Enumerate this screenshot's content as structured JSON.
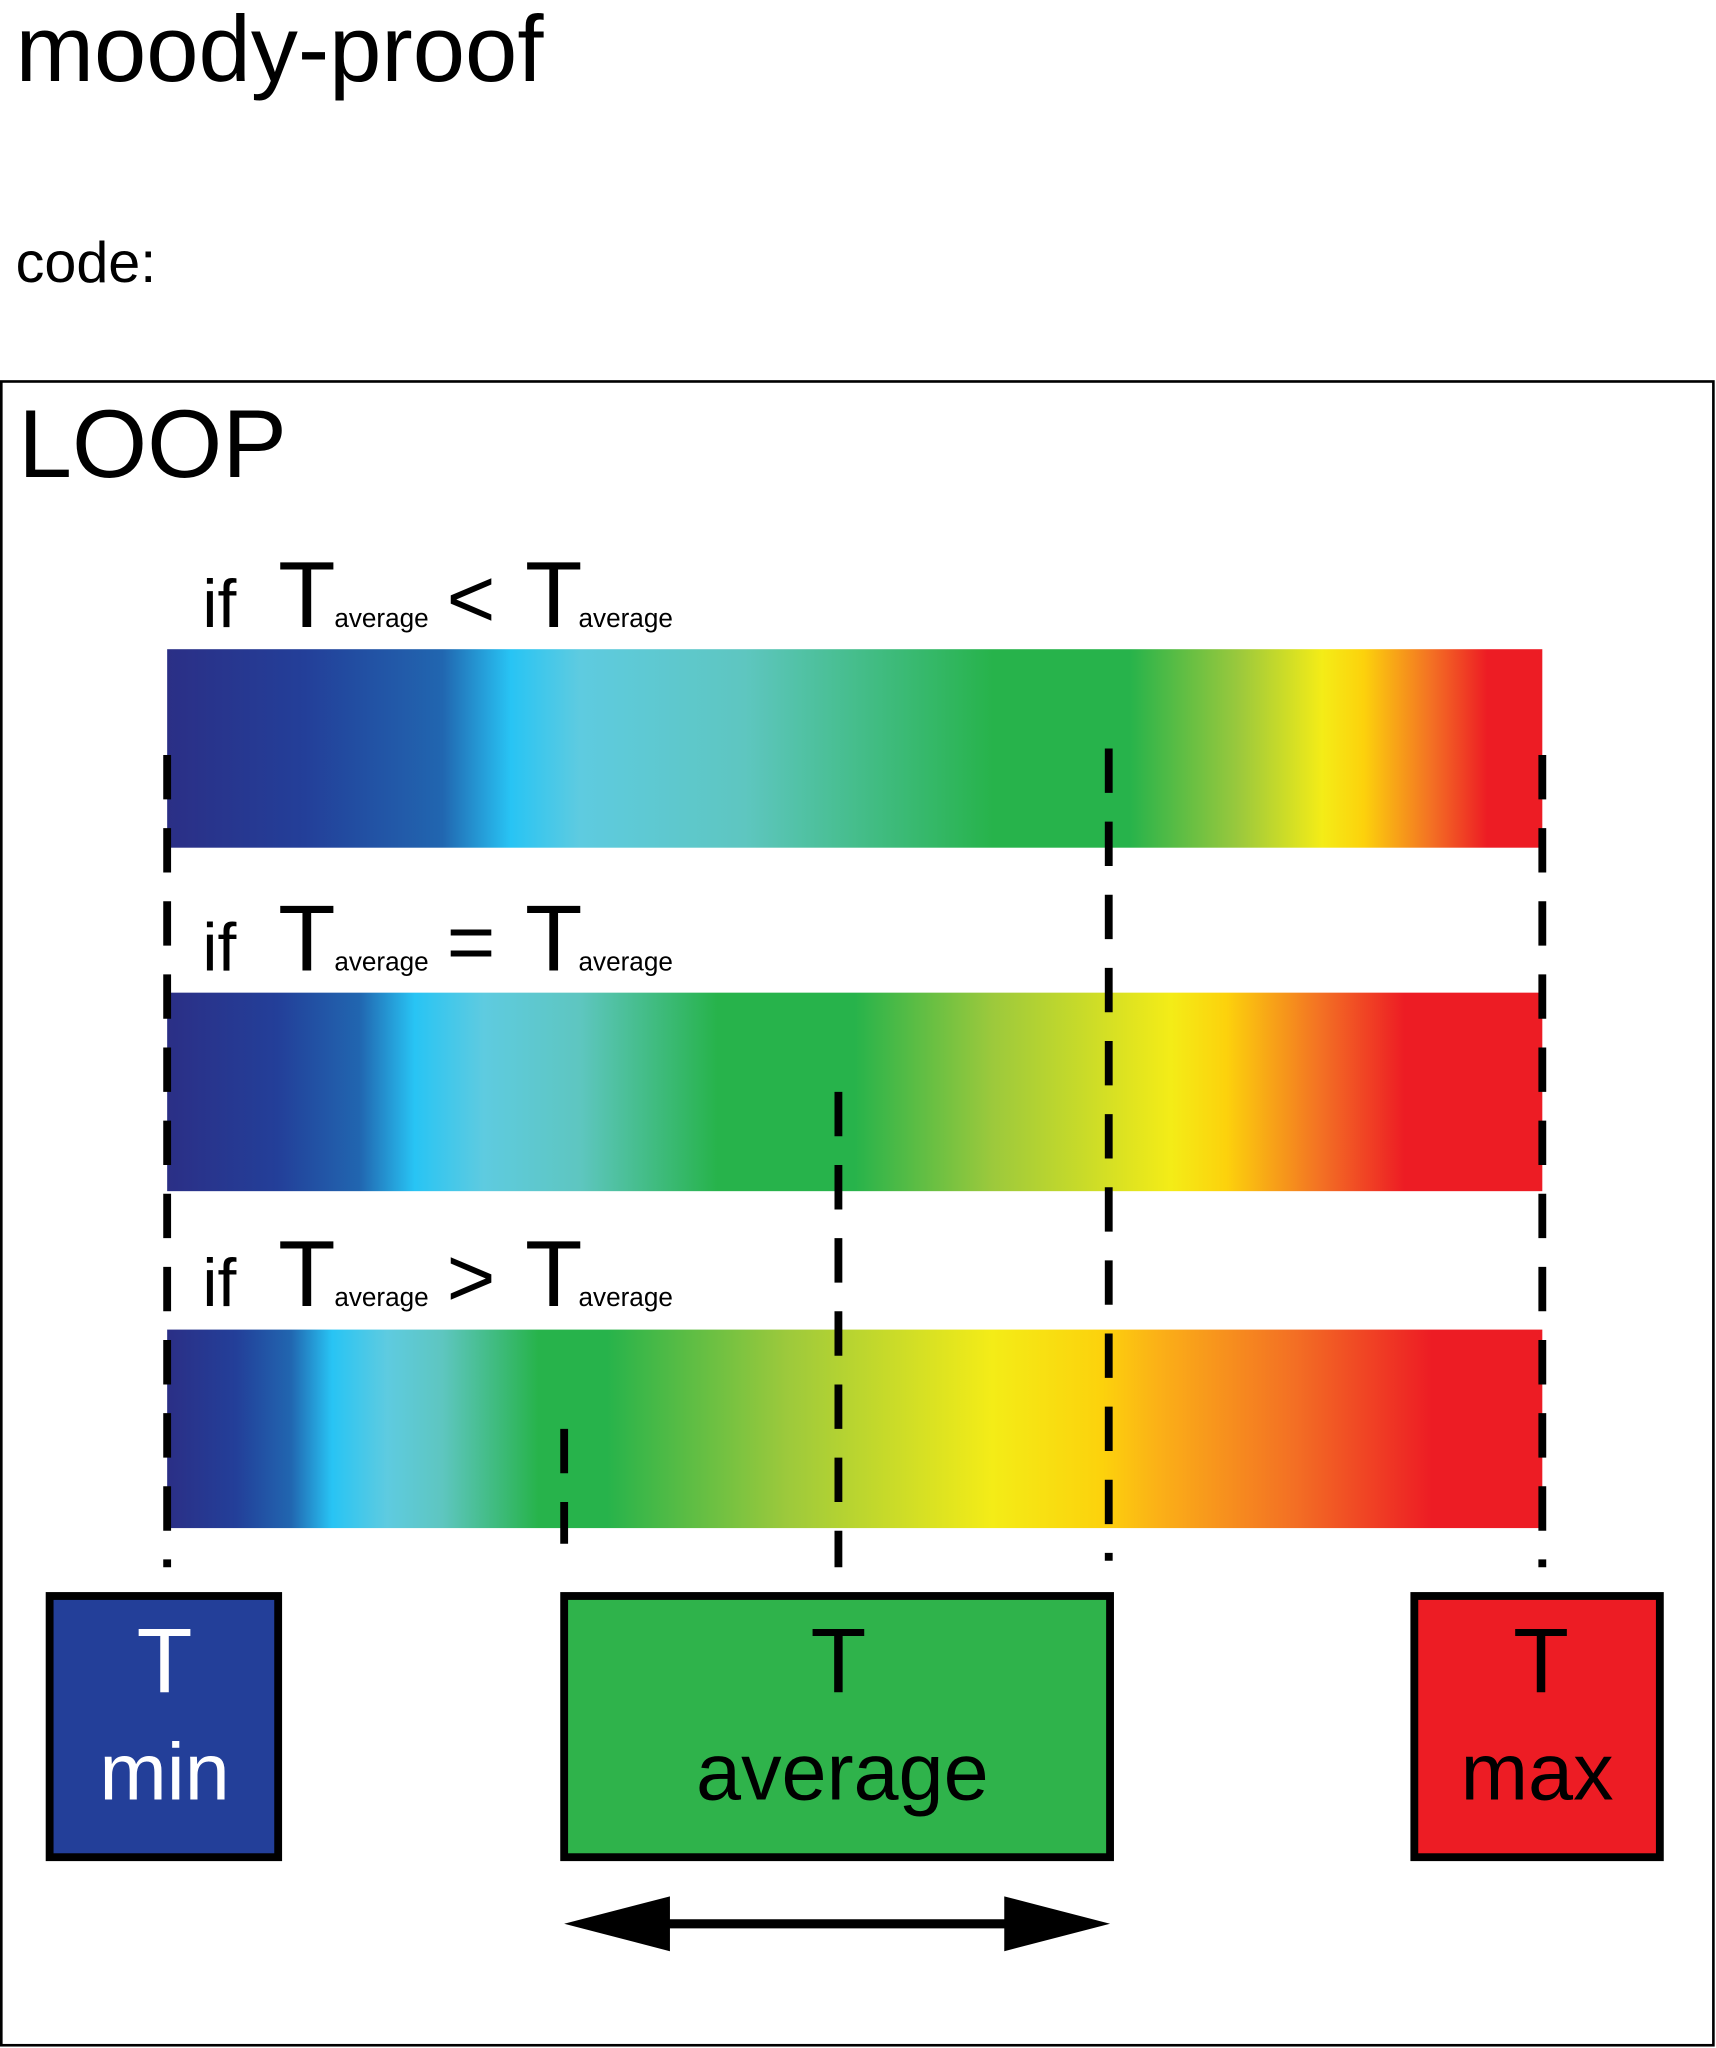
{
  "header": {
    "title": "moody-proof",
    "subtitle": "code:"
  },
  "loop": {
    "label": "LOOP",
    "conditions": [
      {
        "keyword": "if",
        "left": "T",
        "left_sub": "average",
        "operator": "<",
        "right": "T",
        "right_sub": "average"
      },
      {
        "keyword": "if",
        "left": "T",
        "left_sub": "average",
        "operator": "=",
        "right": "T",
        "right_sub": "average"
      },
      {
        "keyword": "if",
        "left": "T",
        "left_sub": "average",
        "operator": ">",
        "right": "T",
        "right_sub": "average"
      }
    ]
  },
  "boxes": [
    {
      "symbol": "T",
      "label": "min"
    },
    {
      "symbol": "T",
      "label": "average"
    },
    {
      "symbol": "T",
      "label": "max"
    }
  ]
}
